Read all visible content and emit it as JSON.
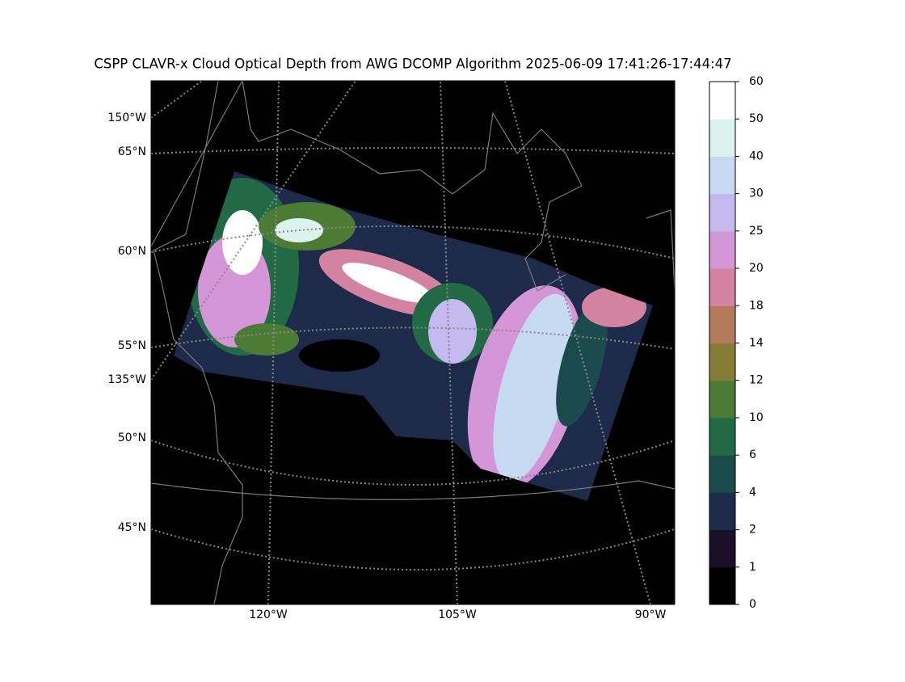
{
  "title": "CSPP CLAVR-x Cloud Optical Depth from AWG DCOMP Algorithm 2025-06-09 17:41:26-17:44:47",
  "map_labels": {
    "left": [
      "150°W",
      "65°N",
      "60°N",
      "55°N",
      "135°W",
      "50°N",
      "45°N"
    ],
    "bottom": [
      "120°W",
      "105°W",
      "90°W"
    ]
  },
  "colorbar": {
    "ticks": [
      0,
      1,
      2,
      4,
      6,
      10,
      12,
      14,
      18,
      20,
      25,
      30,
      40,
      50,
      60
    ],
    "colors": [
      "#000000",
      "#1c1028",
      "#1d2a4a",
      "#1b4a4d",
      "#226a46",
      "#4b7b35",
      "#857c38",
      "#b57a5e",
      "#d382a0",
      "#d496d6",
      "#c5baf0",
      "#c6dbf2",
      "#dcf2ec",
      "#ffffff"
    ]
  }
}
